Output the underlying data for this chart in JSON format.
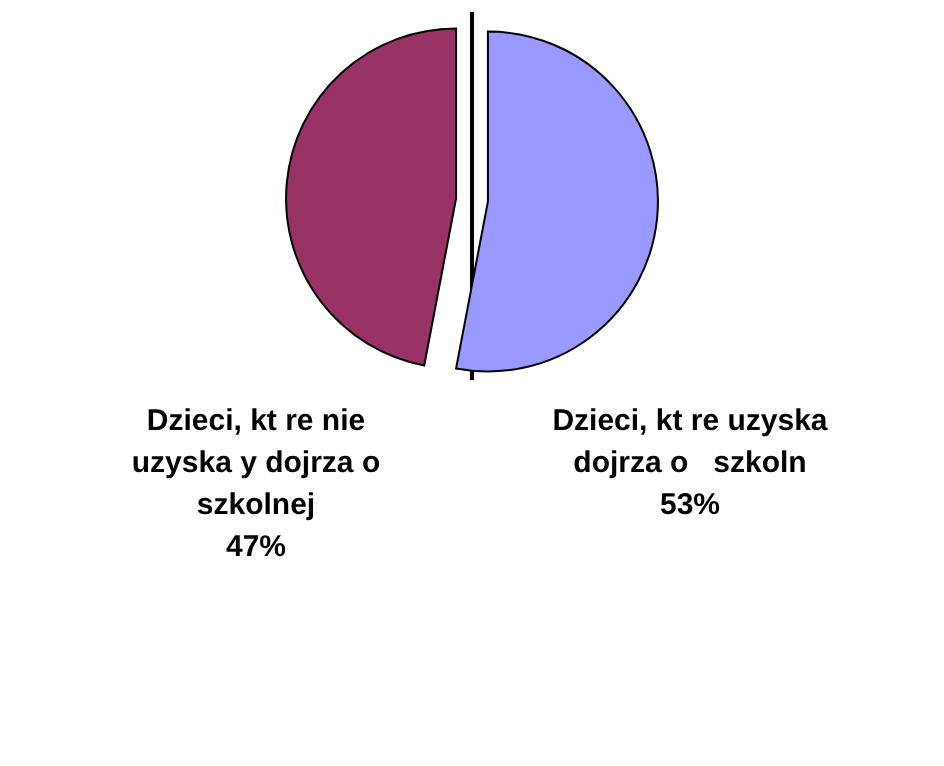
{
  "chart_data": {
    "type": "pie",
    "categories": [
      "Dzieci, kt re nie uzyska y dojrza o szkolnej",
      "Dzieci, kt re uzyska  dojrza o   szkoln"
    ],
    "values": [
      47,
      53
    ],
    "value_labels": [
      "47%",
      "53%"
    ],
    "colors": [
      "#993366",
      "#9999ff"
    ]
  }
}
